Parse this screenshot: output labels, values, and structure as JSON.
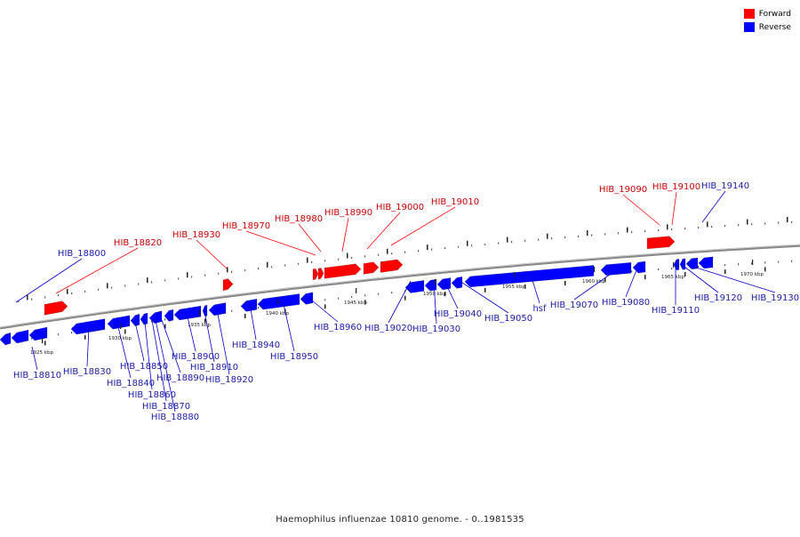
{
  "legend": {
    "forward": {
      "label": "Forward",
      "color": "#ff0000"
    },
    "reverse": {
      "label": "Reverse",
      "color": "#0000ff"
    }
  },
  "colors": {
    "forward": "#ff0000",
    "reverse": "#0000ff",
    "forward_label": "#cc0000",
    "reverse_label": "#1a1aaa",
    "backbone": "#888888"
  },
  "caption": "Haemophilus influenzae 10810 genome. - 0..1981535",
  "scale_labels": [
    "1925 kbp",
    "1930 kbp",
    "1935 kbp",
    "1940 kbp",
    "1945 kbp",
    "1950 kbp",
    "1955 kbp",
    "1960 kbp",
    "1965 kbp",
    "1970 kbp"
  ],
  "gene_labels": {
    "forward": [
      "HIB_18820",
      "HIB_18930",
      "HIB_18970",
      "HIB_18980",
      "HIB_18990",
      "HIB_19000",
      "HIB_19010",
      "HIB_19090",
      "HIB_19100"
    ],
    "reverse": [
      "HIB_18800",
      "HIB_18810",
      "HIB_18830",
      "HIB_18840",
      "HIB_18850",
      "HIB_18860",
      "HIB_18870",
      "HIB_18880",
      "HIB_18890",
      "HIB_18900",
      "HIB_18910",
      "HIB_18920",
      "HIB_18940",
      "HIB_18950",
      "HIB_18960",
      "HIB_19020",
      "HIB_19030",
      "HIB_19040",
      "HIB_19050",
      "hsf",
      "HIB_19070",
      "HIB_19080",
      "HIB_19110",
      "HIB_19120",
      "HIB_19130",
      "HIB_19140"
    ]
  }
}
